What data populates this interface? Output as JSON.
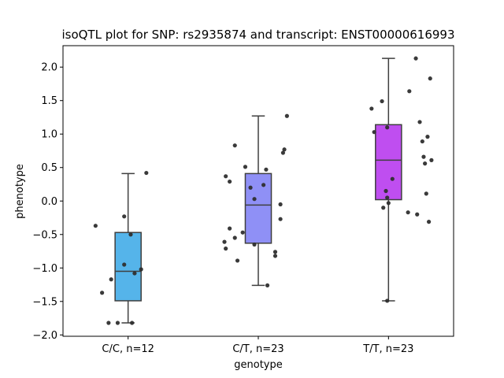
{
  "chart_data": {
    "type": "box",
    "title": "isoQTL plot for SNP: rs2935874 and transcript: ENST00000616993",
    "xlabel": "genotype",
    "ylabel": "phenotype",
    "ylim": [
      -2.02,
      2.32
    ],
    "yticks": [
      2.0,
      1.5,
      1.0,
      0.5,
      0.0,
      -0.5,
      -1.0,
      -1.5,
      -2.0
    ],
    "ytick_labels": [
      "2.0",
      "1.5",
      "1.0",
      "0.5",
      "0.0",
      "−0.5",
      "−1.0",
      "−1.5",
      "−2.0"
    ],
    "grid": false,
    "categories": [
      "C/C, n=12",
      "C/T, n=23",
      "T/T, n=23"
    ],
    "boxes": [
      {
        "category": "C/C, n=12",
        "color": "#55b4ea",
        "whisker_low": -1.82,
        "q1": -1.49,
        "median": -1.05,
        "q3": -0.47,
        "whisker_high": 0.41
      },
      {
        "category": "C/T, n=23",
        "color": "#8f90f6",
        "whisker_low": -1.26,
        "q1": -0.63,
        "median": -0.06,
        "q3": 0.41,
        "whisker_high": 1.27
      },
      {
        "category": "T/T, n=23",
        "color": "#bf4ef0",
        "whisker_low": -1.49,
        "q1": 0.02,
        "median": 0.61,
        "q3": 1.14,
        "whisker_high": 2.13
      }
    ],
    "points": [
      [
        [
          0.14,
          0.42
        ],
        [
          -0.03,
          -0.23
        ],
        [
          -0.25,
          -0.37
        ],
        [
          0.02,
          -0.5
        ],
        [
          -0.03,
          -0.95
        ],
        [
          0.1,
          -1.02
        ],
        [
          0.05,
          -1.08
        ],
        [
          -0.13,
          -1.17
        ],
        [
          -0.2,
          -1.37
        ],
        [
          -0.08,
          -1.82
        ],
        [
          0.03,
          -1.82
        ],
        [
          -0.15,
          -1.82
        ]
      ],
      [
        [
          0.22,
          1.27
        ],
        [
          -0.18,
          0.83
        ],
        [
          0.2,
          0.77
        ],
        [
          0.19,
          0.72
        ],
        [
          -0.1,
          0.51
        ],
        [
          0.06,
          0.47
        ],
        [
          -0.25,
          0.37
        ],
        [
          -0.22,
          0.29
        ],
        [
          0.04,
          0.24
        ],
        [
          -0.06,
          0.2
        ],
        [
          -0.03,
          0.03
        ],
        [
          0.17,
          -0.05
        ],
        [
          0.17,
          -0.27
        ],
        [
          -0.22,
          -0.41
        ],
        [
          -0.12,
          -0.47
        ],
        [
          -0.18,
          -0.55
        ],
        [
          -0.26,
          -0.61
        ],
        [
          -0.03,
          -0.65
        ],
        [
          -0.25,
          -0.71
        ],
        [
          0.13,
          -0.76
        ],
        [
          0.13,
          -0.82
        ],
        [
          -0.16,
          -0.89
        ],
        [
          0.07,
          -1.26
        ]
      ],
      [
        [
          0.21,
          2.13
        ],
        [
          0.32,
          1.83
        ],
        [
          0.16,
          1.64
        ],
        [
          -0.05,
          1.49
        ],
        [
          -0.13,
          1.38
        ],
        [
          0.24,
          1.18
        ],
        [
          -0.01,
          1.1
        ],
        [
          -0.11,
          1.03
        ],
        [
          0.3,
          0.96
        ],
        [
          0.26,
          0.89
        ],
        [
          0.27,
          0.66
        ],
        [
          0.33,
          0.61
        ],
        [
          0.28,
          0.56
        ],
        [
          0.03,
          0.33
        ],
        [
          -0.02,
          0.15
        ],
        [
          0.29,
          0.11
        ],
        [
          -0.01,
          0.05
        ],
        [
          0.0,
          -0.03
        ],
        [
          -0.04,
          -0.1
        ],
        [
          0.15,
          -0.17
        ],
        [
          0.22,
          -0.2
        ],
        [
          0.31,
          -0.31
        ],
        [
          -0.01,
          -1.49
        ]
      ]
    ]
  }
}
